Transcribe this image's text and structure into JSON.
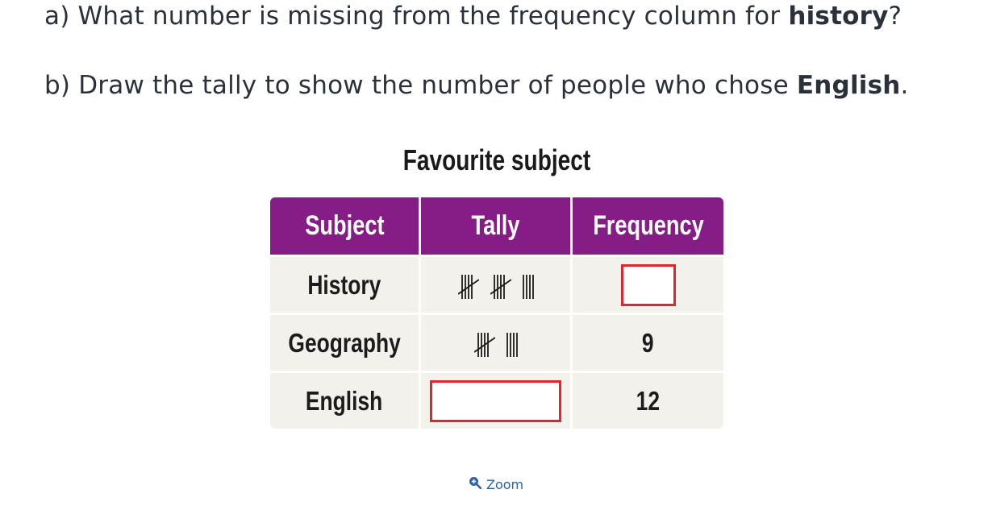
{
  "questions": {
    "a": {
      "prefix": "a) What number is missing from the frequency column for ",
      "bold": "history",
      "suffix": "?"
    },
    "b": {
      "prefix": "b) Draw the tally to show the number of people who chose ",
      "bold": "English",
      "suffix": "."
    }
  },
  "table": {
    "title": "Favourite subject",
    "headers": [
      "Subject",
      "Tally",
      "Frequency"
    ],
    "rows": [
      {
        "subject": "History",
        "tally": "𝍸 𝍸 ||||",
        "tally_count": 14,
        "frequency": ""
      },
      {
        "subject": "Geography",
        "tally": "𝍸 ||||",
        "tally_count": 9,
        "frequency": "9"
      },
      {
        "subject": "English",
        "tally": "",
        "tally_count": null,
        "frequency": "12"
      }
    ]
  },
  "colors": {
    "header_bg": "#861c85",
    "row_bg": "#f3f1ec",
    "answer_box_border": "#e0262c",
    "link": "#2a63a8"
  },
  "zoom": {
    "label": "Zoom",
    "icon": "zoom-in-icon"
  }
}
